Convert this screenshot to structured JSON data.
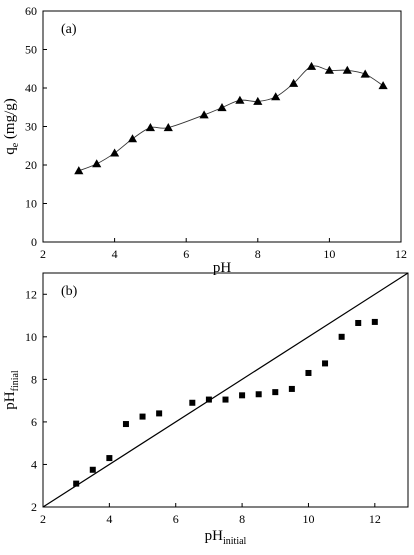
{
  "chart_data": [
    {
      "type": "line",
      "panel_label": "(a)",
      "xlabel": "pH",
      "ylabel": {
        "main": "q",
        "sub": "e",
        "rest": " (mg/g)"
      },
      "xlim": [
        2,
        12
      ],
      "ylim": [
        0,
        60
      ],
      "x_ticks": [
        2,
        4,
        6,
        8,
        10,
        12
      ],
      "y_ticks": [
        0,
        10,
        20,
        30,
        40,
        50,
        60
      ],
      "marker": "triangle",
      "series": [
        {
          "x": [
            3.0,
            3.5,
            4.0,
            4.5,
            5.0,
            5.5,
            6.5,
            7.0,
            7.5,
            8.0,
            8.5,
            9.0,
            9.5,
            10.0,
            10.5,
            11.0,
            11.5
          ],
          "y": [
            18.5,
            20.3,
            23.1,
            26.8,
            29.7,
            29.7,
            33.0,
            34.9,
            36.8,
            36.5,
            37.7,
            41.2,
            45.6,
            44.6,
            44.6,
            43.6,
            40.6
          ]
        }
      ]
    },
    {
      "type": "scatter",
      "panel_label": "(b)",
      "xlabel": {
        "main": "pH",
        "sub": "initial"
      },
      "ylabel": {
        "main": "pH",
        "sub": "finial"
      },
      "xlim": [
        2,
        13
      ],
      "ylim": [
        2,
        13
      ],
      "x_ticks": [
        2,
        4,
        6,
        8,
        10,
        12
      ],
      "y_ticks": [
        2,
        4,
        6,
        8,
        10,
        12
      ],
      "marker": "square",
      "reference_line": "y = x",
      "series": [
        {
          "x": [
            3.0,
            3.5,
            4.0,
            4.5,
            5.0,
            5.5,
            6.5,
            7.0,
            7.5,
            8.0,
            8.5,
            9.0,
            9.5,
            10.0,
            10.5,
            11.0,
            11.5,
            12.0
          ],
          "y": [
            3.1,
            3.75,
            4.3,
            5.9,
            6.25,
            6.4,
            6.9,
            7.05,
            7.05,
            7.25,
            7.3,
            7.4,
            7.55,
            8.3,
            8.75,
            10.0,
            10.65,
            10.7
          ]
        }
      ]
    }
  ]
}
